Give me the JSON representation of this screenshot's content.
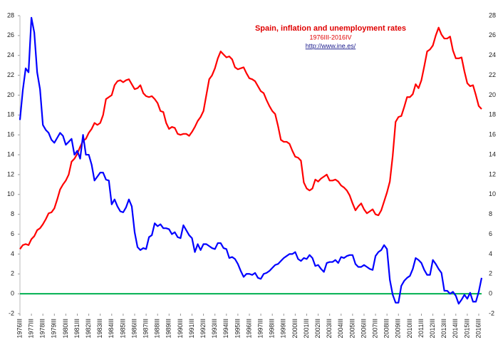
{
  "chart_data": {
    "type": "line",
    "title": "Spain, inflation and unemployment rates",
    "subtitle": "1976III-2016IV",
    "url": "http://www.ine.es/",
    "categories": [
      "1976III",
      null,
      null,
      null,
      "1977III",
      null,
      null,
      null,
      "1978III",
      null,
      null,
      null,
      "1979III",
      null,
      null,
      null,
      "1980III",
      null,
      null,
      null,
      "1981III",
      null,
      null,
      null,
      "1982III",
      null,
      null,
      null,
      "1983III",
      null,
      null,
      null,
      "1984III",
      null,
      null,
      null,
      "1985III",
      null,
      null,
      null,
      "1986III",
      null,
      null,
      null,
      "1987III",
      null,
      null,
      null,
      "1988III",
      null,
      null,
      null,
      "1989III",
      null,
      null,
      null,
      "1990III",
      null,
      null,
      null,
      "1991III",
      null,
      null,
      null,
      "1992III",
      null,
      null,
      null,
      "1993III",
      null,
      null,
      null,
      "1994III",
      null,
      null,
      null,
      "1995III",
      null,
      null,
      null,
      "1996III",
      null,
      null,
      null,
      "1997III",
      null,
      null,
      null,
      "1998III",
      null,
      null,
      null,
      "1999III",
      null,
      null,
      null,
      "2000III",
      null,
      null,
      null,
      "2001III",
      null,
      null,
      null,
      "2002III",
      null,
      null,
      null,
      "2003III",
      null,
      null,
      null,
      "2004III",
      null,
      null,
      null,
      "2005III",
      null,
      null,
      null,
      "2006III",
      null,
      null,
      null,
      "2007III",
      null,
      null,
      null,
      "2008III",
      null,
      null,
      null,
      "2009III",
      null,
      null,
      null,
      "2010III",
      null,
      null,
      null,
      "2011III",
      null,
      null,
      null,
      "2012III",
      null,
      null,
      null,
      "2013III",
      null,
      null,
      null,
      "2014III",
      null,
      null,
      null,
      "2015III",
      null,
      null,
      null,
      "2016III",
      null
    ],
    "series": [
      {
        "color": "#ff0000",
        "values": [
          4.5,
          4.9,
          5,
          4.9,
          5.5,
          5.8,
          6.4,
          6.6,
          7,
          7.5,
          8.1,
          8.2,
          8.6,
          9.5,
          10.5,
          11,
          11.4,
          12,
          13.3,
          13.6,
          14.1,
          14.8,
          15.4,
          15.6,
          16.2,
          16.6,
          17.2,
          17,
          17.2,
          18,
          19.6,
          19.8,
          20,
          21,
          21.4,
          21.5,
          21.3,
          21.5,
          21.6,
          21.1,
          20.6,
          20.7,
          21,
          20.2,
          19.9,
          19.8,
          19.9,
          19.6,
          19.2,
          18.4,
          18.3,
          17.2,
          16.6,
          16.8,
          16.7,
          16.1,
          16,
          16.1,
          16.1,
          15.9,
          16.3,
          16.8,
          17.4,
          17.8,
          18.4,
          20,
          21.6,
          22,
          22.7,
          23.7,
          24.4,
          24.1,
          23.8,
          23.9,
          23.6,
          22.8,
          22.6,
          22.7,
          22.8,
          22.2,
          21.7,
          21.6,
          21.4,
          20.9,
          20.4,
          20.2,
          19.5,
          18.9,
          18.4,
          18.1,
          16.9,
          15.5,
          15.3,
          15.3,
          15.1,
          14.4,
          13.8,
          13.7,
          13.4,
          11.2,
          10.6,
          10.4,
          10.6,
          11.5,
          11.3,
          11.6,
          11.8,
          12,
          11.4,
          11.4,
          11.5,
          11.3,
          10.9,
          10.7,
          10.4,
          9.9,
          9.1,
          8.4,
          8.8,
          9.1,
          8.5,
          8.1,
          8.3,
          8.5,
          8,
          7.9,
          8.4,
          9.3,
          10.2,
          11.3,
          13.9,
          17.3,
          17.8,
          17.9,
          18.8,
          19.8,
          19.8,
          20.1,
          21.1,
          20.7,
          21.5,
          22.9,
          24.4,
          24.6,
          25,
          26,
          26.8,
          26.1,
          25.7,
          25.7,
          25.9,
          24.5,
          23.7,
          23.7,
          23.8,
          22.4,
          21.2,
          20.9,
          21,
          20,
          18.9,
          18.6
        ]
      },
      {
        "color": "#0000ff",
        "values": [
          17.5,
          20.5,
          22.7,
          22.3,
          27.8,
          26.3,
          22.3,
          20.6,
          17,
          16.5,
          16.2,
          15.5,
          15.2,
          15.7,
          16.2,
          15.9,
          15,
          15.3,
          15.6,
          14,
          14.4,
          13.6,
          16,
          14,
          14,
          13,
          11.4,
          11.8,
          12.2,
          12.2,
          11.5,
          11.4,
          9,
          9.5,
          8.8,
          8.3,
          8.2,
          8.7,
          9.5,
          8.8,
          6.2,
          4.7,
          4.4,
          4.6,
          4.5,
          5.7,
          5.9,
          7.1,
          6.8,
          7,
          6.6,
          6.6,
          6.5,
          6,
          6.2,
          5.7,
          5.6,
          6.9,
          6.4,
          5.9,
          5.6,
          4.2,
          5,
          4.4,
          5,
          5,
          4.8,
          4.6,
          4.5,
          5.1,
          5.1,
          4.6,
          4.5,
          3.6,
          3.7,
          3.5,
          3,
          2.3,
          1.7,
          2,
          2,
          1.9,
          2.1,
          1.6,
          1.5,
          2,
          2.1,
          2.3,
          2.6,
          2.9,
          3,
          3.3,
          3.6,
          3.8,
          4,
          4,
          4.2,
          3.5,
          3.3,
          3.6,
          3.5,
          3.9,
          3.6,
          2.8,
          2.9,
          2.5,
          2.2,
          3.1,
          3.2,
          3.2,
          3.4,
          3.1,
          3.7,
          3.6,
          3.8,
          3.9,
          3.9,
          3,
          2.7,
          2.7,
          2.9,
          2.7,
          2.5,
          2.4,
          3.8,
          4.2,
          4.4,
          4.9,
          4.5,
          1.4,
          -0.1,
          -0.9,
          -0.9,
          0.8,
          1.3,
          1.6,
          1.8,
          2.5,
          3.6,
          3.4,
          3.1,
          2.4,
          1.9,
          1.9,
          3.4,
          3,
          2.5,
          2.1,
          0.3,
          0.3,
          0,
          0.2,
          -0.2,
          -1,
          -0.6,
          -0.1,
          -0.5,
          0.1,
          -0.8,
          -0.8,
          0.2,
          1.6
        ]
      }
    ],
    "ylim": [
      -2,
      28
    ],
    "yticks": [
      -2,
      0,
      2,
      4,
      6,
      8,
      10,
      12,
      14,
      16,
      18,
      20,
      22,
      24,
      26,
      28
    ],
    "y2lim": [
      -2,
      28
    ],
    "y2ticks": [
      -2,
      0,
      2,
      4,
      6,
      8,
      10,
      12,
      14,
      16,
      18,
      20,
      22,
      24,
      26,
      28
    ],
    "zero_line_color": "#00b050",
    "grid": false
  }
}
